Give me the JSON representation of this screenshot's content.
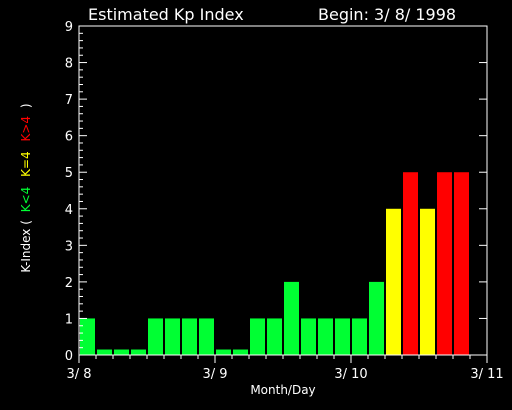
{
  "chart_data": {
    "type": "bar",
    "title": "Estimated Kp Index",
    "subtitle": "Begin: 3/ 8/ 1998",
    "xlabel": "Month/Day",
    "ylabel": {
      "prefix": "K-Index (",
      "low": "K<4",
      "mid": "K=4",
      "high": "K>4",
      "suffix": ")"
    },
    "colors": {
      "low": "#00ff33",
      "mid": "#ffff00",
      "high": "#ff0000",
      "axis": "#ffffff",
      "background": "#000000"
    },
    "ylim": [
      0,
      9
    ],
    "yticks": [
      "0",
      "1",
      "2",
      "3",
      "4",
      "5",
      "6",
      "7",
      "8",
      "9"
    ],
    "xlim": [
      0,
      24
    ],
    "xticks": [
      {
        "label": "3/ 8",
        "at": 0
      },
      {
        "label": "3/ 9",
        "at": 8
      },
      {
        "label": "3/ 10",
        "at": 16
      },
      {
        "label": "3/ 11",
        "at": 24
      }
    ],
    "values": [
      1,
      0.15,
      0.15,
      0.15,
      1,
      1,
      1,
      1,
      0.15,
      0.15,
      1,
      1,
      2,
      1,
      1,
      1,
      1,
      2,
      4,
      5,
      4,
      5,
      5
    ]
  }
}
